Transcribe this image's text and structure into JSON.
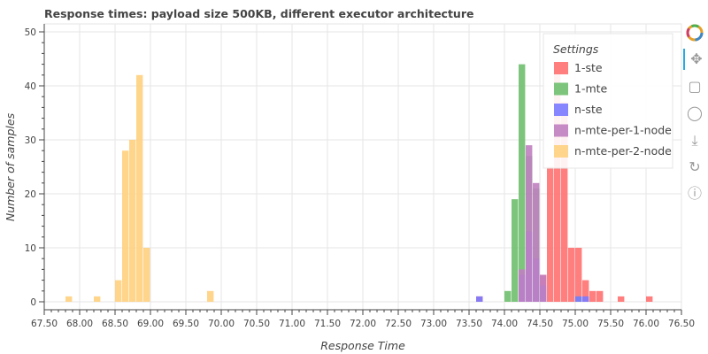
{
  "chart_data": {
    "type": "histogram",
    "title": "Response times: payload size 500KB, different executor architecture",
    "xlabel": "Response Time",
    "ylabel": "Number of samples",
    "xlim": [
      67.5,
      76.5
    ],
    "ylim": [
      0,
      50
    ],
    "xticks": [
      "67.50",
      "68.00",
      "68.50",
      "69.00",
      "69.50",
      "70.00",
      "70.50",
      "71.00",
      "71.50",
      "72.00",
      "72.50",
      "73.00",
      "73.50",
      "74.00",
      "74.50",
      "75.00",
      "75.50",
      "76.00",
      "76.50"
    ],
    "yticks": [
      "0",
      "10",
      "20",
      "30",
      "40",
      "50"
    ],
    "grid": true,
    "legend": {
      "title": "Settings",
      "placement": "top-right"
    },
    "bin_width": 0.1,
    "series": [
      {
        "name": "1-ste",
        "color": "#ff7070",
        "bins": [
          [
            73.6,
            1
          ],
          [
            74.5,
            5
          ],
          [
            74.6,
            25
          ],
          [
            74.7,
            43
          ],
          [
            74.8,
            37
          ],
          [
            74.9,
            10
          ],
          [
            75.0,
            10
          ],
          [
            75.1,
            4
          ],
          [
            75.2,
            2
          ],
          [
            75.3,
            2
          ],
          [
            75.6,
            1
          ],
          [
            76.0,
            1
          ]
        ]
      },
      {
        "name": "1-mte",
        "color": "#6fbf6f",
        "bins": [
          [
            74.0,
            2
          ],
          [
            74.1,
            19
          ],
          [
            74.2,
            44
          ],
          [
            74.3,
            27
          ],
          [
            74.4,
            21
          ],
          [
            74.5,
            2
          ],
          [
            75.0,
            1
          ]
        ]
      },
      {
        "name": "n-ste",
        "color": "#7a7aff",
        "bins": [
          [
            73.6,
            1
          ],
          [
            74.2,
            5
          ],
          [
            74.3,
            13
          ],
          [
            74.4,
            8
          ],
          [
            74.5,
            3
          ],
          [
            75.0,
            1
          ],
          [
            75.1,
            1
          ]
        ]
      },
      {
        "name": "n-mte-per-1-node",
        "color": "#c07fc0",
        "bins": [
          [
            74.2,
            6
          ],
          [
            74.3,
            29
          ],
          [
            74.4,
            22
          ],
          [
            74.5,
            5
          ]
        ]
      },
      {
        "name": "n-mte-per-2-node",
        "color": "#ffd080",
        "bins": [
          [
            67.8,
            1
          ],
          [
            68.2,
            1
          ],
          [
            68.5,
            4
          ],
          [
            68.6,
            28
          ],
          [
            68.7,
            30
          ],
          [
            68.8,
            42
          ],
          [
            68.9,
            10
          ],
          [
            69.8,
            2
          ]
        ]
      }
    ]
  },
  "toolbar": {
    "tools": [
      {
        "name": "bokeh-logo-icon",
        "interactable": false
      },
      {
        "name": "pan-icon",
        "interactable": true
      },
      {
        "name": "box-zoom-icon",
        "interactable": true
      },
      {
        "name": "wheel-zoom-icon",
        "interactable": true
      },
      {
        "name": "save-icon",
        "interactable": true
      },
      {
        "name": "reset-icon",
        "interactable": true
      },
      {
        "name": "help-icon",
        "interactable": true
      }
    ]
  }
}
